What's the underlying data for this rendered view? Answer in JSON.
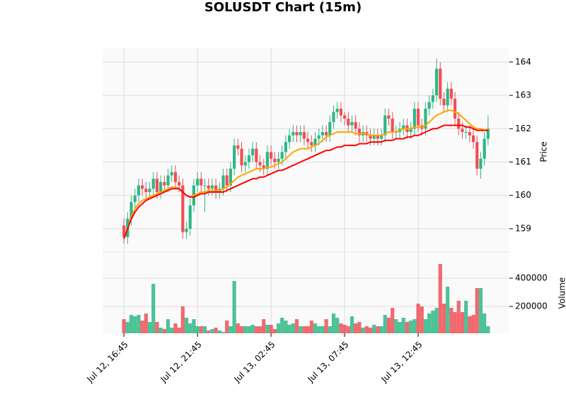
{
  "chart_data": {
    "type": "candlestick",
    "title": "SOLUSDT Chart (15m)",
    "ylabel": "Price",
    "xlim": [
      -5.8,
      104.8
    ],
    "xticks": [
      {
        "value": 0,
        "label": "Jul 12, 16:45"
      },
      {
        "value": 20,
        "label": "Jul 12, 21:45"
      },
      {
        "value": 40,
        "label": "Jul 13, 02:45"
      },
      {
        "value": 60,
        "label": "Jul 13, 07:45"
      },
      {
        "value": 80,
        "label": "Jul 13, 12:45"
      }
    ],
    "ylim": [
      158.3,
      164.42
    ],
    "yticks": [
      159,
      160,
      161,
      162,
      163,
      164
    ],
    "grid": true,
    "up_color": "#2db785",
    "down_color": "#ef4f55",
    "open": [
      159.1,
      158.75,
      159.3,
      159.8,
      160.0,
      160.3,
      160.2,
      160.1,
      160.2,
      160.5,
      160.1,
      160.4,
      160.3,
      160.6,
      160.7,
      160.4,
      160.3,
      158.9,
      159.0,
      159.7,
      160.3,
      160.5,
      160.3,
      160.3,
      160.2,
      160.3,
      160.1,
      160.2,
      160.6,
      160.3,
      160.8,
      161.5,
      161.4,
      160.9,
      161.0,
      161.2,
      161.4,
      161.0,
      160.9,
      160.8,
      161.3,
      161.1,
      161.0,
      161.1,
      161.3,
      161.6,
      161.8,
      161.9,
      161.8,
      161.9,
      161.7,
      161.6,
      161.5,
      161.7,
      161.8,
      161.9,
      161.8,
      162.2,
      162.5,
      162.6,
      162.4,
      162.3,
      162.1,
      162.2,
      162.0,
      161.8,
      161.9,
      161.8,
      161.7,
      161.8,
      161.7,
      161.8,
      162.4,
      162.3,
      161.9,
      161.9,
      162.0,
      162.1,
      161.9,
      162.0,
      162.6,
      162.1,
      162.0,
      162.6,
      162.8,
      163.0,
      163.8,
      162.9,
      162.7,
      163.2,
      162.9,
      162.3,
      162.0,
      161.9,
      161.9,
      161.8,
      161.6,
      160.8,
      161.1,
      161.7
    ],
    "high": [
      159.3,
      159.5,
      160.0,
      160.2,
      160.5,
      160.5,
      160.4,
      160.4,
      160.7,
      160.7,
      160.6,
      160.6,
      160.8,
      160.9,
      160.9,
      160.6,
      160.5,
      159.2,
      159.9,
      160.5,
      160.7,
      160.7,
      160.5,
      160.5,
      160.5,
      160.5,
      160.4,
      160.8,
      160.8,
      161.0,
      161.7,
      161.7,
      161.6,
      161.2,
      161.4,
      161.6,
      161.6,
      161.2,
      161.1,
      161.5,
      161.5,
      161.3,
      161.3,
      161.5,
      161.8,
      162.0,
      162.1,
      162.1,
      162.1,
      162.1,
      161.9,
      161.8,
      161.9,
      162.0,
      162.1,
      162.1,
      162.4,
      162.7,
      162.8,
      162.8,
      162.5,
      162.5,
      162.4,
      162.4,
      162.2,
      162.1,
      162.1,
      162.0,
      162.0,
      162.0,
      162.0,
      162.6,
      162.6,
      162.5,
      162.1,
      162.2,
      162.3,
      162.3,
      162.2,
      162.8,
      162.8,
      162.3,
      162.8,
      163.0,
      163.2,
      164.1,
      164.0,
      163.1,
      163.4,
      163.4,
      163.1,
      162.5,
      162.2,
      162.1,
      162.1,
      162.0,
      161.8,
      161.3,
      161.9,
      162.4
    ],
    "low": [
      158.55,
      158.55,
      159.1,
      159.6,
      159.8,
      160.0,
      159.9,
      159.9,
      160.0,
      159.9,
      159.9,
      160.1,
      160.1,
      160.4,
      160.2,
      160.1,
      158.7,
      158.7,
      158.8,
      159.5,
      160.1,
      160.1,
      159.5,
      160.0,
      160.0,
      159.9,
      159.9,
      160.0,
      160.1,
      160.1,
      160.6,
      161.2,
      160.7,
      160.7,
      160.8,
      161.0,
      160.8,
      160.7,
      160.6,
      160.6,
      160.9,
      160.8,
      160.8,
      160.9,
      161.1,
      161.4,
      161.6,
      161.6,
      161.6,
      161.5,
      161.4,
      161.3,
      161.3,
      161.5,
      161.6,
      161.6,
      161.6,
      162.0,
      162.3,
      162.2,
      162.1,
      161.9,
      161.9,
      161.8,
      161.6,
      161.6,
      161.6,
      161.5,
      161.5,
      161.5,
      161.5,
      161.6,
      162.1,
      161.7,
      161.7,
      161.7,
      161.8,
      161.7,
      161.7,
      161.8,
      161.9,
      161.8,
      161.8,
      162.4,
      162.6,
      162.8,
      162.7,
      162.5,
      162.5,
      162.7,
      162.1,
      161.8,
      161.7,
      161.7,
      161.6,
      161.4,
      160.6,
      160.5,
      160.9,
      161.5
    ],
    "close": [
      158.75,
      159.3,
      159.8,
      160.0,
      160.3,
      160.2,
      160.1,
      160.2,
      160.5,
      160.1,
      160.4,
      160.3,
      160.6,
      160.7,
      160.4,
      160.3,
      158.9,
      159.0,
      159.7,
      160.3,
      160.5,
      160.3,
      160.3,
      160.2,
      160.3,
      160.1,
      160.2,
      160.6,
      160.3,
      160.8,
      161.5,
      161.4,
      160.9,
      161.0,
      161.2,
      161.4,
      161.0,
      160.9,
      160.8,
      161.3,
      161.1,
      161.0,
      161.1,
      161.3,
      161.6,
      161.8,
      161.9,
      161.8,
      161.9,
      161.7,
      161.6,
      161.5,
      161.7,
      161.8,
      161.9,
      161.8,
      162.2,
      162.5,
      162.6,
      162.4,
      162.3,
      162.1,
      162.2,
      162.0,
      161.8,
      161.9,
      161.8,
      161.7,
      161.8,
      161.7,
      161.8,
      162.4,
      162.3,
      161.9,
      161.9,
      162.0,
      162.1,
      161.9,
      162.0,
      162.6,
      162.1,
      162.0,
      162.6,
      162.8,
      163.0,
      163.8,
      162.9,
      162.7,
      163.2,
      162.9,
      162.3,
      162.0,
      161.9,
      161.9,
      161.8,
      161.6,
      160.8,
      161.1,
      161.7,
      162.0
    ],
    "series": [
      {
        "color": "#ffa500",
        "values": [
          158.7,
          159.0,
          159.35,
          159.6,
          159.75,
          159.85,
          159.9,
          159.95,
          160.0,
          160.05,
          160.1,
          160.15,
          160.2,
          160.25,
          160.25,
          160.2,
          160.1,
          160.0,
          159.95,
          160.0,
          160.05,
          160.1,
          160.1,
          160.15,
          160.15,
          160.15,
          160.15,
          160.2,
          160.25,
          160.35,
          160.45,
          160.55,
          160.6,
          160.65,
          160.7,
          160.75,
          160.8,
          160.8,
          160.8,
          160.85,
          160.85,
          160.9,
          160.95,
          161.0,
          161.1,
          161.2,
          161.3,
          161.35,
          161.4,
          161.4,
          161.4,
          161.45,
          161.5,
          161.55,
          161.65,
          161.75,
          161.8,
          161.85,
          161.9,
          161.9,
          161.9,
          161.9,
          161.9,
          161.85,
          161.85,
          161.85,
          161.85,
          161.8,
          161.8,
          161.8,
          161.8,
          161.85,
          161.9,
          161.9,
          161.9,
          161.95,
          162.0,
          162.0,
          162.0,
          162.05,
          162.05,
          162.05,
          162.1,
          162.2,
          162.3,
          162.4,
          162.45,
          162.5,
          162.55,
          162.55,
          162.5,
          162.45,
          162.35,
          162.25,
          162.15,
          162.05,
          162.0,
          162.0,
          161.95,
          162.0
        ]
      },
      {
        "color": "#ff0000",
        "values": [
          158.7,
          159.0,
          159.3,
          159.5,
          159.65,
          159.75,
          159.85,
          159.9,
          159.95,
          160.0,
          160.05,
          160.1,
          160.15,
          160.2,
          160.2,
          160.2,
          160.1,
          160.0,
          159.95,
          159.95,
          160.0,
          160.05,
          160.05,
          160.1,
          160.1,
          160.1,
          160.1,
          160.1,
          160.15,
          160.2,
          160.25,
          160.3,
          160.35,
          160.4,
          160.45,
          160.5,
          160.5,
          160.55,
          160.55,
          160.6,
          160.65,
          160.7,
          160.75,
          160.75,
          160.8,
          160.85,
          160.9,
          160.95,
          161.0,
          161.05,
          161.1,
          161.15,
          161.2,
          161.25,
          161.3,
          161.35,
          161.35,
          161.4,
          161.45,
          161.45,
          161.5,
          161.5,
          161.5,
          161.5,
          161.55,
          161.55,
          161.55,
          161.6,
          161.6,
          161.6,
          161.6,
          161.65,
          161.65,
          161.65,
          161.7,
          161.7,
          161.7,
          161.75,
          161.75,
          161.8,
          161.8,
          161.85,
          161.9,
          161.95,
          162.0,
          162.0,
          162.05,
          162.1,
          162.1,
          162.1,
          162.1,
          162.1,
          162.1,
          162.05,
          162.05,
          162.0,
          161.95,
          161.95,
          161.95,
          161.95
        ]
      }
    ],
    "volume": {
      "label": "Volume",
      "ylim": [
        10000,
        585000
      ],
      "yticks": [
        200000,
        400000
      ],
      "values": [
        110000,
        90000,
        140000,
        130000,
        140000,
        100000,
        150000,
        90000,
        360000,
        90000,
        50000,
        40000,
        110000,
        50000,
        80000,
        50000,
        200000,
        120000,
        80000,
        110000,
        60000,
        60000,
        60000,
        30000,
        40000,
        50000,
        30000,
        20000,
        100000,
        60000,
        380000,
        80000,
        60000,
        60000,
        60000,
        70000,
        60000,
        60000,
        110000,
        70000,
        70000,
        40000,
        80000,
        120000,
        100000,
        70000,
        80000,
        110000,
        60000,
        60000,
        60000,
        100000,
        80000,
        60000,
        60000,
        110000,
        60000,
        150000,
        120000,
        80000,
        70000,
        60000,
        130000,
        80000,
        90000,
        50000,
        60000,
        50000,
        70000,
        60000,
        60000,
        140000,
        120000,
        190000,
        110000,
        90000,
        120000,
        90000,
        100000,
        110000,
        220000,
        200000,
        110000,
        150000,
        170000,
        190000,
        500000,
        220000,
        340000,
        190000,
        160000,
        240000,
        160000,
        240000,
        130000,
        140000,
        330000,
        330000,
        150000,
        60000
      ]
    }
  }
}
